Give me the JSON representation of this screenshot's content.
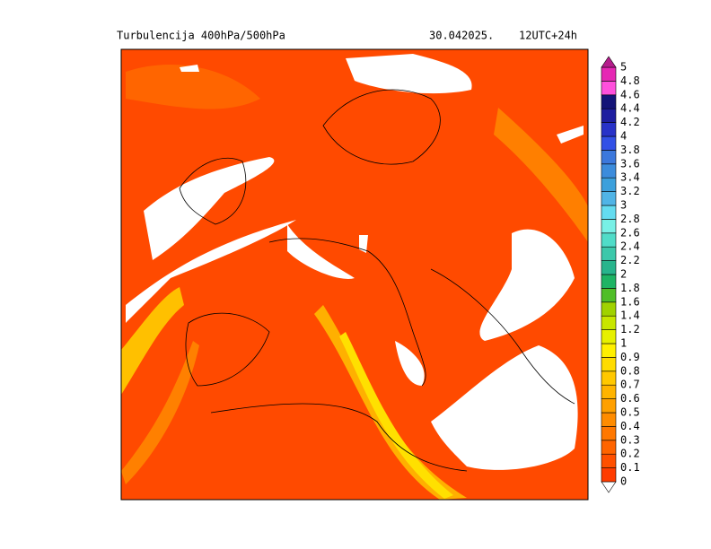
{
  "header": {
    "title": "Turbulencija 400hPa/500hPa",
    "date": "30.042025.",
    "run": "12UTC+24h"
  },
  "legend": {
    "under_color": "#ffffff",
    "levels": [
      {
        "value": 0,
        "color": "#ff3c00"
      },
      {
        "value": 0.1,
        "color": "#ff5000"
      },
      {
        "value": 0.2,
        "color": "#ff6400"
      },
      {
        "value": 0.3,
        "color": "#ff7800"
      },
      {
        "value": 0.4,
        "color": "#ff8c00"
      },
      {
        "value": 0.5,
        "color": "#ffa000"
      },
      {
        "value": 0.6,
        "color": "#ffb400"
      },
      {
        "value": 0.7,
        "color": "#ffc800"
      },
      {
        "value": 0.8,
        "color": "#ffdc00"
      },
      {
        "value": 0.9,
        "color": "#fff000"
      },
      {
        "value": 1,
        "color": "#e6f000"
      },
      {
        "value": 1.2,
        "color": "#c8e600"
      },
      {
        "value": 1.4,
        "color": "#a0d200"
      },
      {
        "value": 1.6,
        "color": "#50be28"
      },
      {
        "value": 1.8,
        "color": "#1eb464"
      },
      {
        "value": 2,
        "color": "#28b48c"
      },
      {
        "value": 2.2,
        "color": "#3cc8aa"
      },
      {
        "value": 2.4,
        "color": "#50dcc8"
      },
      {
        "value": 2.6,
        "color": "#78f0e6"
      },
      {
        "value": 2.8,
        "color": "#64dcf0"
      },
      {
        "value": 3,
        "color": "#50b4e6"
      },
      {
        "value": 3.2,
        "color": "#3ca0dc"
      },
      {
        "value": 3.4,
        "color": "#3c8cdc"
      },
      {
        "value": 3.6,
        "color": "#3c78dc"
      },
      {
        "value": 3.8,
        "color": "#3250e6"
      },
      {
        "value": 4,
        "color": "#2832c8"
      },
      {
        "value": 4.2,
        "color": "#1e1ea0"
      },
      {
        "value": 4.4,
        "color": "#141478"
      },
      {
        "value": 4.6,
        "color": "#ff50dc"
      },
      {
        "value": 4.8,
        "color": "#e628b4"
      },
      {
        "value": 5,
        "color": "#b41e8c"
      }
    ]
  }
}
